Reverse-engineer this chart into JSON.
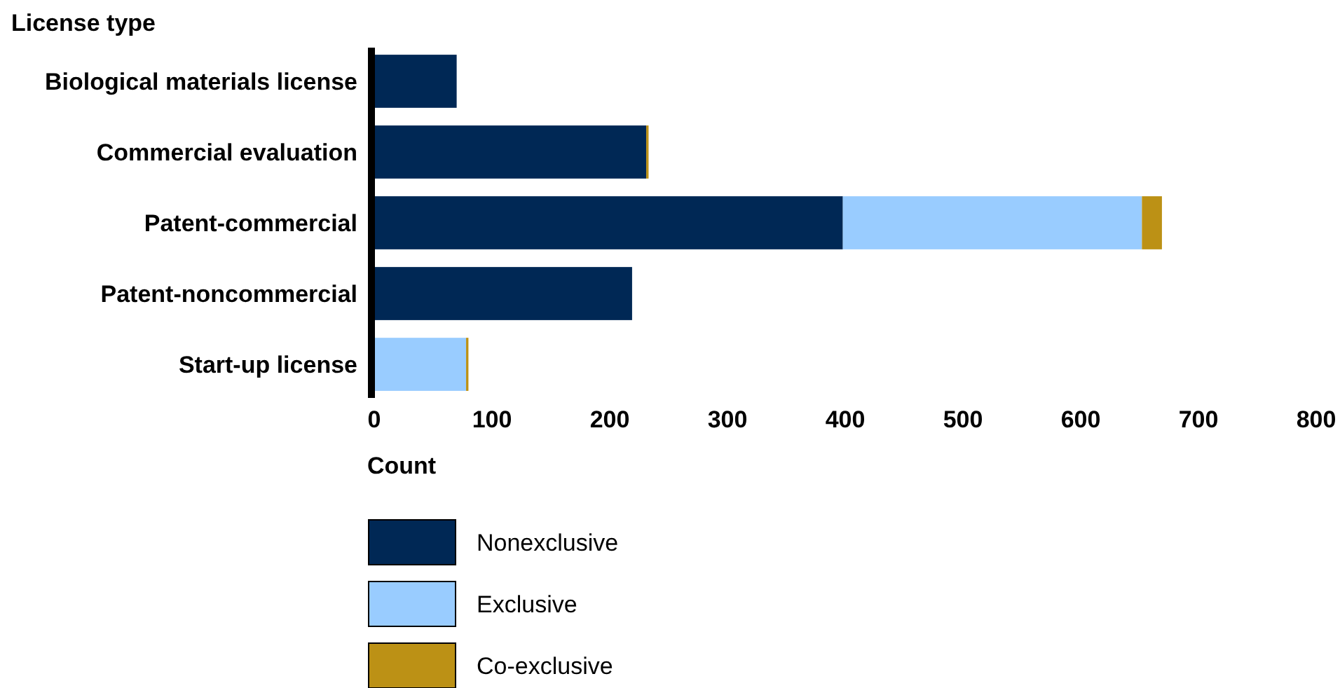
{
  "chart_data": {
    "type": "bar",
    "orientation": "horizontal",
    "stacked": true,
    "ylabel": "License type",
    "xlabel": "Count",
    "categories": [
      "Biological materials license",
      "Commercial evaluation",
      "Patent-commercial",
      "Patent-noncommercial",
      "Start-up license"
    ],
    "series": [
      {
        "name": "Nonexclusive",
        "color": "#002855",
        "values": [
          70,
          231,
          398,
          219,
          0
        ]
      },
      {
        "name": "Exclusive",
        "color": "#99ccff",
        "values": [
          0,
          0,
          254,
          0,
          78
        ]
      },
      {
        "name": "Co-exclusive",
        "color": "#bc9115",
        "values": [
          0,
          2,
          17,
          0,
          2
        ]
      }
    ],
    "xlim": [
      0,
      800
    ],
    "xticks": [
      0,
      100,
      200,
      300,
      400,
      500,
      600,
      700,
      800
    ],
    "legend": "bottom",
    "grid": false
  }
}
